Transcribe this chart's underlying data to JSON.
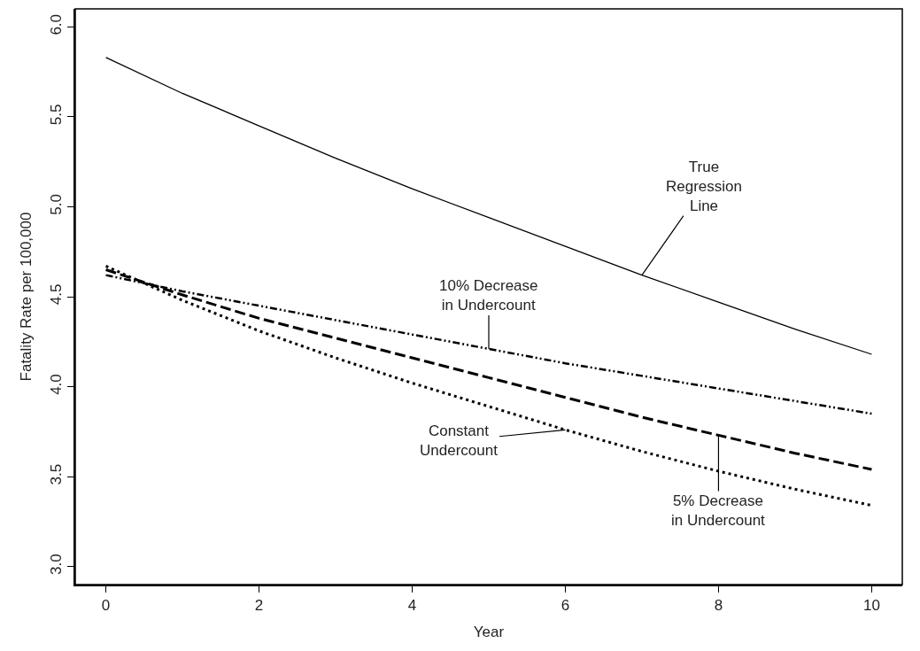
{
  "chart_data": {
    "type": "line",
    "xlabel": "Year",
    "ylabel": "Fatality Rate per 100,000",
    "x": [
      0,
      1,
      2,
      3,
      4,
      5,
      6,
      7,
      8,
      9,
      10
    ],
    "series": [
      {
        "color": "#000000",
        "line_style": "solid",
        "values": [
          5.83,
          5.63,
          5.45,
          5.27,
          5.1,
          4.94,
          4.78,
          4.62,
          4.47,
          4.32,
          4.18
        ]
      },
      {
        "color": "#000000",
        "line_style": "dashdot",
        "values": [
          4.62,
          4.53,
          4.45,
          4.37,
          4.29,
          4.21,
          4.13,
          4.06,
          3.99,
          3.92,
          3.85
        ]
      },
      {
        "color": "#000000",
        "line_style": "dashed",
        "values": [
          4.65,
          4.51,
          4.38,
          4.27,
          4.16,
          4.05,
          3.94,
          3.83,
          3.73,
          3.63,
          3.54
        ]
      },
      {
        "color": "#000000",
        "line_style": "dotted",
        "values": [
          4.67,
          4.48,
          4.31,
          4.16,
          4.02,
          3.89,
          3.76,
          3.64,
          3.53,
          3.43,
          3.34
        ]
      }
    ],
    "xlim": [
      -0.4,
      10.4
    ],
    "ylim": [
      2.9,
      6.1
    ],
    "xticks": [
      0,
      2,
      4,
      6,
      8,
      10
    ],
    "yticks": [
      {
        "value": 3,
        "label": "3.0"
      },
      3.5,
      {
        "value": 4,
        "label": "4.0"
      },
      4.5,
      {
        "value": 5,
        "label": "5.0"
      },
      5.5,
      {
        "value": 6,
        "label": "6.0"
      }
    ],
    "annotations": [
      {
        "text": "True\nRegression\nLine",
        "x": 7,
        "y": 4.62
      },
      {
        "text": "10% Decrease\nin Undercount",
        "x": 5,
        "y": 4.21
      },
      {
        "text": "Constant\nUndercount",
        "x": 6,
        "y": 3.76
      },
      {
        "text": "5% Decrease\nin Undercount",
        "x": 8,
        "y": 3.73
      }
    ],
    "marker": "none"
  }
}
